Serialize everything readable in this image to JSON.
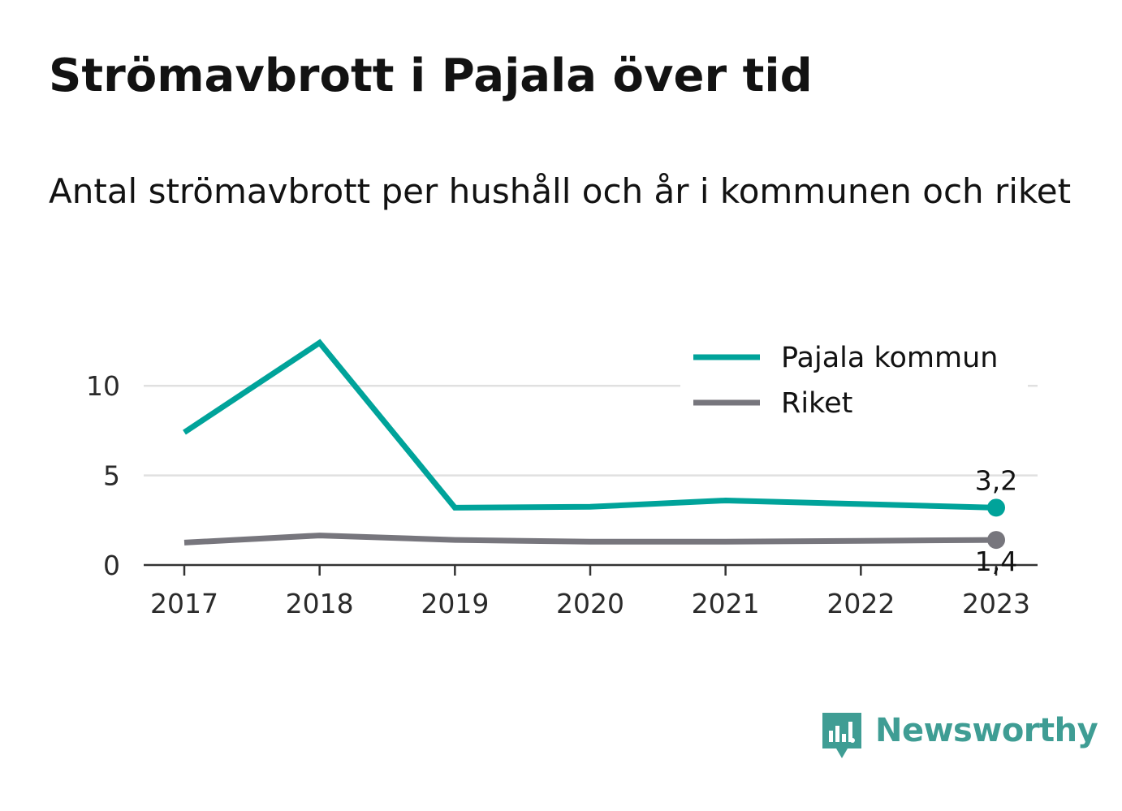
{
  "title": "Strömavbrott i Pajala över tid",
  "subtitle": "Antal strömavbrott per hushåll och år i kommunen och riket",
  "brand": {
    "name": "Newsworthy",
    "icon": "newsworthy-bar-chart-icon",
    "color": "#3f9d94"
  },
  "chart_data": {
    "type": "line",
    "x": [
      "2017",
      "2018",
      "2019",
      "2020",
      "2021",
      "2022",
      "2023"
    ],
    "ylim": [
      0,
      12.5
    ],
    "yticks": [
      0,
      5,
      10
    ],
    "grid": true,
    "legend_position": "top-right",
    "series": [
      {
        "name": "Pajala kommun",
        "color": "#00a39a",
        "values": [
          7.4,
          12.4,
          3.2,
          3.25,
          3.6,
          3.4,
          3.2
        ],
        "end_label": "3,2"
      },
      {
        "name": "Riket",
        "color": "#77767d",
        "values": [
          1.25,
          1.65,
          1.4,
          1.3,
          1.3,
          1.35,
          1.4
        ],
        "end_label": "1,4"
      }
    ]
  }
}
